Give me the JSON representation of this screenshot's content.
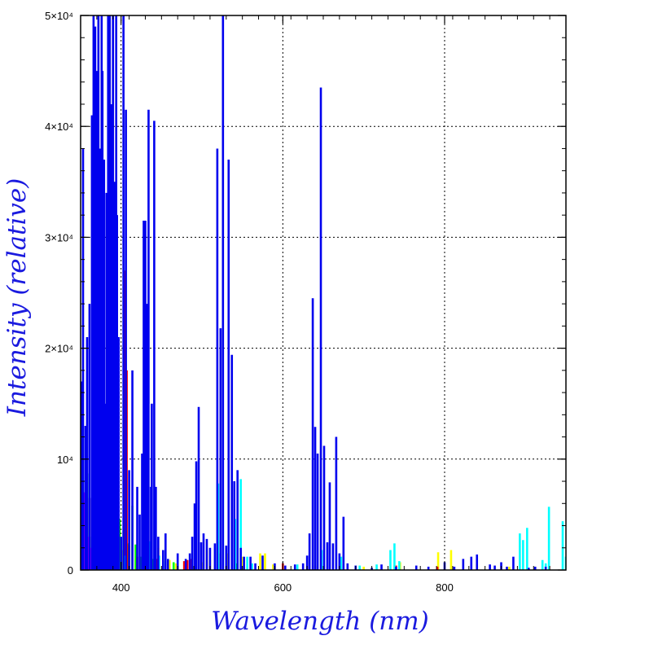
{
  "chart_data": {
    "type": "bar",
    "title": "",
    "xlabel": "Wavelength (nm)",
    "ylabel": "Intensity (relative)",
    "xlim": [
      350,
      950
    ],
    "ylim": [
      0,
      50000
    ],
    "grid": true,
    "x_ticks": [
      {
        "value": 400,
        "label": "400"
      },
      {
        "value": 600,
        "label": "600"
      },
      {
        "value": 800,
        "label": "800"
      }
    ],
    "y_ticks": [
      {
        "value": 0,
        "label": "0"
      },
      {
        "value": 10000,
        "label": "10⁴"
      },
      {
        "value": 20000,
        "label": "2×10⁴"
      },
      {
        "value": 30000,
        "label": "3×10⁴"
      },
      {
        "value": 40000,
        "label": "4×10⁴"
      },
      {
        "value": 50000,
        "label": "5×10⁴"
      }
    ],
    "series": [
      {
        "color": "#ffff00",
        "lines": [
          [
            351,
            2000
          ],
          [
            354,
            1500
          ],
          [
            358,
            2000
          ],
          [
            361,
            1200
          ],
          [
            368,
            600
          ],
          [
            375,
            900
          ],
          [
            382,
            600
          ],
          [
            398,
            2200
          ],
          [
            401,
            1800
          ],
          [
            408,
            1200
          ],
          [
            418,
            900
          ],
          [
            436,
            1200
          ],
          [
            446,
            2000
          ],
          [
            452,
            900
          ],
          [
            460,
            900
          ],
          [
            468,
            600
          ],
          [
            500,
            700
          ],
          [
            506,
            1800
          ],
          [
            510,
            900
          ],
          [
            532,
            1500
          ],
          [
            550,
            1200
          ],
          [
            572,
            1500
          ],
          [
            578,
            1500
          ],
          [
            588,
            500
          ],
          [
            640,
            400
          ],
          [
            700,
            300
          ],
          [
            745,
            700
          ],
          [
            792,
            1600
          ],
          [
            808,
            1800
          ],
          [
            840,
            500
          ],
          [
            880,
            300
          ]
        ]
      },
      {
        "color": "#00ff00",
        "lines": [
          [
            350,
            9500
          ],
          [
            352,
            4500
          ],
          [
            355,
            4800
          ],
          [
            358,
            8700
          ],
          [
            361,
            3000
          ],
          [
            364,
            6500
          ],
          [
            372,
            2500
          ],
          [
            378,
            4000
          ],
          [
            383,
            7000
          ],
          [
            386,
            5500
          ],
          [
            389,
            8000
          ],
          [
            392,
            5000
          ],
          [
            395,
            3000
          ],
          [
            398,
            4600
          ],
          [
            403,
            3500
          ],
          [
            408,
            2400
          ],
          [
            414,
            5800
          ],
          [
            418,
            2300
          ],
          [
            425,
            1200
          ],
          [
            440,
            1000
          ],
          [
            465,
            700
          ],
          [
            520,
            1500
          ],
          [
            542,
            600
          ]
        ]
      },
      {
        "color": "#ff00ff",
        "lines": [
          [
            351,
            8000
          ],
          [
            353,
            5500
          ],
          [
            355,
            7000
          ],
          [
            357,
            4000
          ],
          [
            359,
            3000
          ],
          [
            361,
            6500
          ],
          [
            363,
            2000
          ]
        ]
      },
      {
        "color": "#ff0000",
        "lines": [
          [
            386,
            3300
          ],
          [
            392,
            2800
          ],
          [
            404,
            27000
          ],
          [
            407,
            18000
          ],
          [
            410,
            2200
          ],
          [
            420,
            1200
          ],
          [
            445,
            1000
          ],
          [
            478,
            800
          ],
          [
            482,
            900
          ],
          [
            486,
            1000
          ],
          [
            600,
            600
          ],
          [
            740,
            400
          ],
          [
            791,
            300
          ]
        ]
      },
      {
        "color": "#00ffff",
        "lines": [
          [
            376,
            1100
          ],
          [
            383,
            1600
          ],
          [
            405,
            1300
          ],
          [
            430,
            2600
          ],
          [
            436,
            2600
          ],
          [
            442,
            2400
          ],
          [
            447,
            1300
          ],
          [
            452,
            800
          ],
          [
            520,
            7800
          ],
          [
            526,
            7200
          ],
          [
            541,
            4600
          ],
          [
            548,
            8200
          ],
          [
            556,
            1200
          ],
          [
            562,
            600
          ],
          [
            618,
            500
          ],
          [
            648,
            1800
          ],
          [
            672,
            1200
          ],
          [
            695,
            400
          ],
          [
            716,
            500
          ],
          [
            733,
            1800
          ],
          [
            738,
            2400
          ],
          [
            744,
            800
          ],
          [
            893,
            3300
          ],
          [
            897,
            2700
          ],
          [
            902,
            3800
          ],
          [
            921,
            900
          ],
          [
            925,
            600
          ],
          [
            929,
            5700
          ],
          [
            946,
            4400
          ],
          [
            950,
            1200
          ]
        ]
      },
      {
        "color": "#0000ee",
        "lines": [
          [
            351,
            17000
          ],
          [
            353,
            38000
          ],
          [
            356,
            13000
          ],
          [
            358,
            21000
          ],
          [
            361,
            24000
          ],
          [
            364,
            41000
          ],
          [
            366,
            50000
          ],
          [
            368,
            49000
          ],
          [
            370,
            45000
          ],
          [
            372,
            50000
          ],
          [
            374,
            38000
          ],
          [
            376,
            50000
          ],
          [
            377,
            45000
          ],
          [
            379,
            37000
          ],
          [
            380,
            15000
          ],
          [
            382,
            34000
          ],
          [
            384,
            50000
          ],
          [
            386,
            50000
          ],
          [
            388,
            42000
          ],
          [
            390,
            50000
          ],
          [
            392,
            35000
          ],
          [
            394,
            50000
          ],
          [
            395,
            32000
          ],
          [
            397,
            21000
          ],
          [
            400,
            3000
          ],
          [
            403,
            50000
          ],
          [
            406,
            41500
          ],
          [
            410,
            9000
          ],
          [
            414,
            18000
          ],
          [
            420,
            7500
          ],
          [
            423,
            5000
          ],
          [
            426,
            10500
          ],
          [
            428,
            31500
          ],
          [
            430,
            31500
          ],
          [
            432,
            24000
          ],
          [
            434,
            41500
          ],
          [
            437,
            7500
          ],
          [
            438,
            15000
          ],
          [
            441,
            40500
          ],
          [
            443,
            7500
          ],
          [
            446,
            3000
          ],
          [
            452,
            1800
          ],
          [
            455,
            3300
          ],
          [
            458,
            1000
          ],
          [
            470,
            1500
          ],
          [
            480,
            1000
          ],
          [
            485,
            1500
          ],
          [
            488,
            3000
          ],
          [
            491,
            6000
          ],
          [
            493,
            9800
          ],
          [
            496,
            14700
          ],
          [
            499,
            2500
          ],
          [
            502,
            3300
          ],
          [
            506,
            2800
          ],
          [
            510,
            2000
          ],
          [
            516,
            2400
          ],
          [
            519,
            38000
          ],
          [
            523,
            21800
          ],
          [
            526,
            50000
          ],
          [
            530,
            2200
          ],
          [
            533,
            37000
          ],
          [
            537,
            19400
          ],
          [
            540,
            8000
          ],
          [
            544,
            9000
          ],
          [
            548,
            2000
          ],
          [
            552,
            1200
          ],
          [
            560,
            1200
          ],
          [
            566,
            600
          ],
          [
            575,
            1300
          ],
          [
            590,
            600
          ],
          [
            603,
            400
          ],
          [
            615,
            500
          ],
          [
            625,
            600
          ],
          [
            630,
            1300
          ],
          [
            633,
            3300
          ],
          [
            637,
            24500
          ],
          [
            640,
            12900
          ],
          [
            643,
            10500
          ],
          [
            647,
            43500
          ],
          [
            651,
            11200
          ],
          [
            655,
            2500
          ],
          [
            658,
            7900
          ],
          [
            662,
            2400
          ],
          [
            666,
            12000
          ],
          [
            670,
            1500
          ],
          [
            675,
            4800
          ],
          [
            680,
            600
          ],
          [
            690,
            400
          ],
          [
            710,
            200
          ],
          [
            722,
            500
          ],
          [
            740,
            300
          ],
          [
            765,
            400
          ],
          [
            780,
            300
          ],
          [
            800,
            700
          ],
          [
            812,
            300
          ],
          [
            823,
            1000
          ],
          [
            833,
            1200
          ],
          [
            840,
            1400
          ],
          [
            856,
            500
          ],
          [
            862,
            400
          ],
          [
            870,
            700
          ],
          [
            877,
            300
          ],
          [
            885,
            1200
          ],
          [
            904,
            200
          ],
          [
            912,
            300
          ],
          [
            925,
            300
          ]
        ]
      }
    ]
  }
}
